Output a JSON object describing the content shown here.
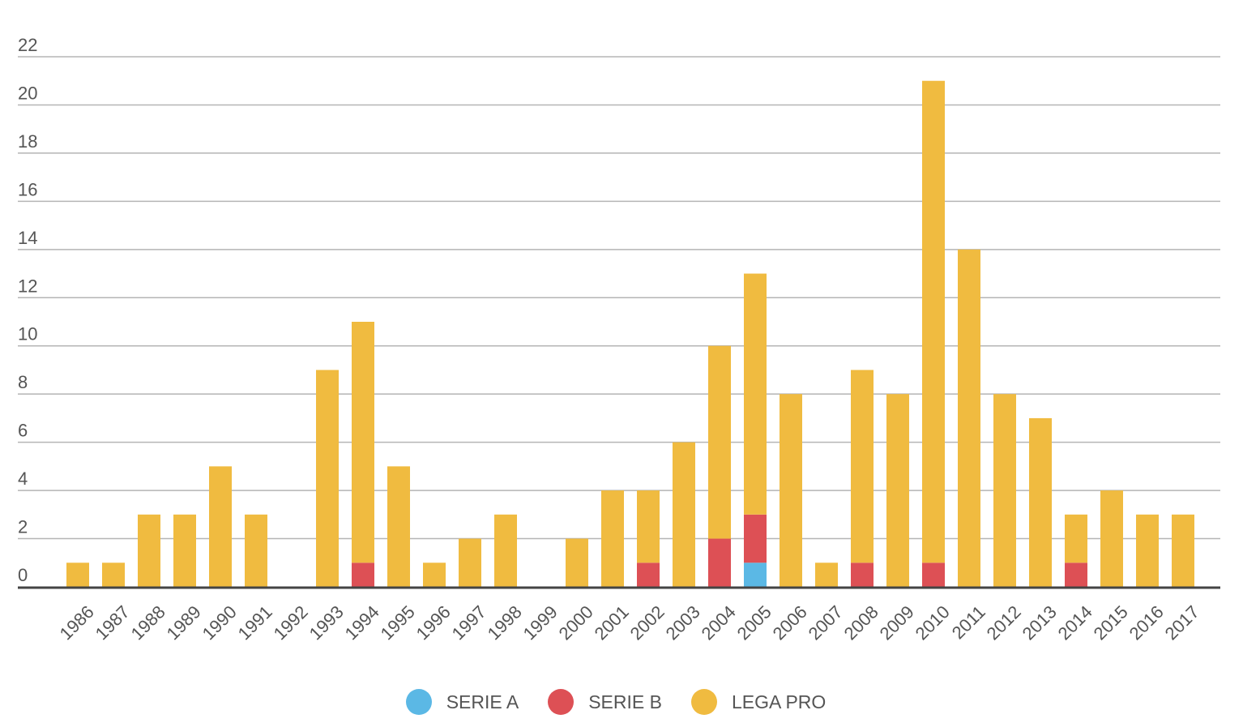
{
  "chart_data": {
    "type": "bar",
    "stacked": true,
    "categories": [
      "1986",
      "1987",
      "1988",
      "1989",
      "1990",
      "1991",
      "1992",
      "1993",
      "1994",
      "1995",
      "1996",
      "1997",
      "1998",
      "1999",
      "2000",
      "2001",
      "2002",
      "2003",
      "2004",
      "2005",
      "2006",
      "2007",
      "2008",
      "2009",
      "2010",
      "2011",
      "2012",
      "2013",
      "2014",
      "2015",
      "2016",
      "2017"
    ],
    "series": [
      {
        "name": "SERIE A",
        "color": "#5bb8e5",
        "values": [
          0,
          0,
          0,
          0,
          0,
          0,
          0,
          0,
          0,
          0,
          0,
          0,
          0,
          0,
          0,
          0,
          0,
          0,
          0,
          1,
          0,
          0,
          0,
          0,
          0,
          0,
          0,
          0,
          0,
          0,
          0,
          0
        ]
      },
      {
        "name": "SERIE B",
        "color": "#dd5055",
        "values": [
          0,
          0,
          0,
          0,
          0,
          0,
          0,
          0,
          1,
          0,
          0,
          0,
          0,
          0,
          0,
          0,
          1,
          0,
          2,
          2,
          0,
          0,
          1,
          0,
          1,
          0,
          0,
          0,
          1,
          0,
          0,
          0
        ]
      },
      {
        "name": "LEGA PRO",
        "color": "#f0bb40",
        "values": [
          1,
          1,
          3,
          3,
          5,
          3,
          0,
          9,
          10,
          5,
          1,
          2,
          3,
          0,
          2,
          4,
          3,
          6,
          8,
          10,
          8,
          1,
          8,
          8,
          20,
          14,
          8,
          7,
          2,
          4,
          3,
          3
        ]
      }
    ],
    "ylim": [
      0,
      22
    ],
    "yticks": [
      0,
      2,
      4,
      6,
      8,
      10,
      12,
      14,
      16,
      18,
      20,
      22
    ],
    "grid": true,
    "legend_position": "bottom-center"
  }
}
